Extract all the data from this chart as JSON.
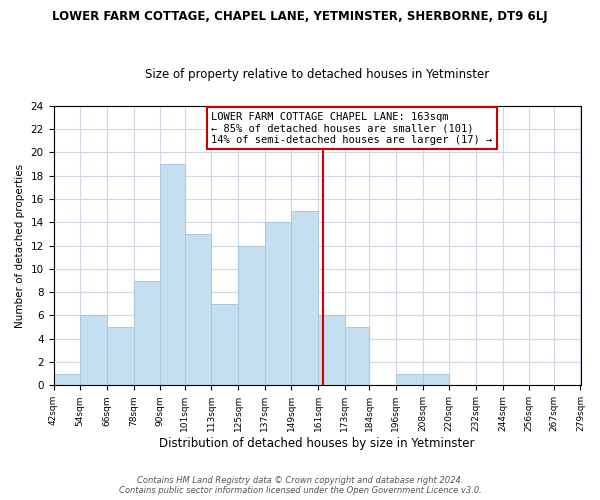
{
  "title": "LOWER FARM COTTAGE, CHAPEL LANE, YETMINSTER, SHERBORNE, DT9 6LJ",
  "subtitle": "Size of property relative to detached houses in Yetminster",
  "xlabel": "Distribution of detached houses by size in Yetminster",
  "ylabel": "Number of detached properties",
  "bar_edges": [
    42,
    54,
    66,
    78,
    90,
    101,
    113,
    125,
    137,
    149,
    161,
    173,
    184,
    196,
    208,
    220,
    232,
    244,
    256,
    267,
    279
  ],
  "bar_counts": [
    1,
    6,
    5,
    9,
    19,
    13,
    7,
    12,
    14,
    15,
    6,
    5,
    0,
    1,
    1,
    0,
    0,
    0,
    0,
    0
  ],
  "bar_color": "#c5dff0",
  "bar_edge_color": "#aac8e0",
  "vline_x": 163,
  "vline_color": "#cc0000",
  "ylim": [
    0,
    24
  ],
  "yticks": [
    0,
    2,
    4,
    6,
    8,
    10,
    12,
    14,
    16,
    18,
    20,
    22,
    24
  ],
  "annotation_title": "LOWER FARM COTTAGE CHAPEL LANE: 163sqm",
  "annotation_line1": "← 85% of detached houses are smaller (101)",
  "annotation_line2": "14% of semi-detached houses are larger (17) →",
  "annotation_box_color": "#ffffff",
  "annotation_box_edge": "#cc0000",
  "footer1": "Contains HM Land Registry data © Crown copyright and database right 2024.",
  "footer2": "Contains public sector information licensed under the Open Government Licence v3.0.",
  "background_color": "#ffffff",
  "grid_color": "#d0d8e8"
}
